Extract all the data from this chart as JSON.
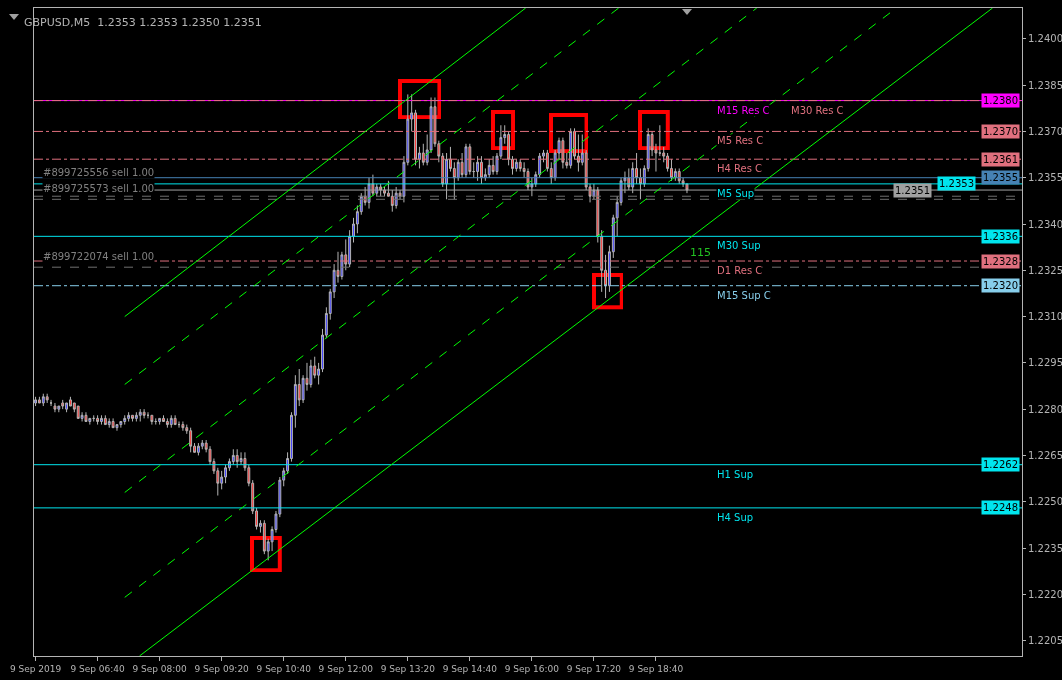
{
  "chart_data": {
    "type": "candlestick",
    "title": "GBPUSD,M5  1.2353 1.2353 1.2350 1.2351",
    "x": [
      "2019-09-09T05:20",
      "2019-09-09T05:25",
      "2019-09-09T05:30",
      "2019-09-09T05:35",
      "2019-09-09T05:40",
      "2019-09-09T05:45",
      "2019-09-09T05:50",
      "2019-09-09T05:55",
      "2019-09-09T06:00",
      "2019-09-09T06:05",
      "2019-09-09T06:10",
      "2019-09-09T06:15",
      "2019-09-09T06:20",
      "2019-09-09T06:25",
      "2019-09-09T06:30",
      "2019-09-09T06:35",
      "2019-09-09T06:40",
      "2019-09-09T06:45",
      "2019-09-09T06:50",
      "2019-09-09T06:55",
      "2019-09-09T07:00",
      "2019-09-09T07:05",
      "2019-09-09T07:10",
      "2019-09-09T07:15",
      "2019-09-09T07:20",
      "2019-09-09T07:25",
      "2019-09-09T07:30",
      "2019-09-09T07:35",
      "2019-09-09T07:40",
      "2019-09-09T07:45",
      "2019-09-09T07:50",
      "2019-09-09T07:55",
      "2019-09-09T08:00",
      "2019-09-09T08:05",
      "2019-09-09T08:10",
      "2019-09-09T08:15",
      "2019-09-09T08:20",
      "2019-09-09T08:25",
      "2019-09-09T08:30",
      "2019-09-09T08:35",
      "2019-09-09T08:40",
      "2019-09-09T08:45",
      "2019-09-09T08:50",
      "2019-09-09T08:55",
      "2019-09-09T09:00",
      "2019-09-09T09:05",
      "2019-09-09T09:10",
      "2019-09-09T09:15",
      "2019-09-09T09:20",
      "2019-09-09T09:25",
      "2019-09-09T09:30",
      "2019-09-09T09:35",
      "2019-09-09T09:40",
      "2019-09-09T09:45",
      "2019-09-09T09:50",
      "2019-09-09T09:55",
      "2019-09-09T10:00",
      "2019-09-09T10:05",
      "2019-09-09T10:10",
      "2019-09-09T10:15",
      "2019-09-09T10:20",
      "2019-09-09T10:25",
      "2019-09-09T10:30",
      "2019-09-09T10:35",
      "2019-09-09T10:40",
      "2019-09-09T10:45",
      "2019-09-09T10:50",
      "2019-09-09T10:55",
      "2019-09-09T11:00",
      "2019-09-09T11:05",
      "2019-09-09T11:10",
      "2019-09-09T11:15",
      "2019-09-09T11:20",
      "2019-09-09T11:25",
      "2019-09-09T11:30",
      "2019-09-09T11:35",
      "2019-09-09T11:40",
      "2019-09-09T11:45",
      "2019-09-09T11:50",
      "2019-09-09T11:55",
      "2019-09-09T12:00",
      "2019-09-09T12:05",
      "2019-09-09T12:10",
      "2019-09-09T12:15",
      "2019-09-09T12:20",
      "2019-09-09T12:25",
      "2019-09-09T12:30",
      "2019-09-09T12:35",
      "2019-09-09T12:40",
      "2019-09-09T12:45",
      "2019-09-09T12:50",
      "2019-09-09T12:55",
      "2019-09-09T13:00",
      "2019-09-09T13:05",
      "2019-09-09T13:10",
      "2019-09-09T13:15",
      "2019-09-09T13:20",
      "2019-09-09T13:25",
      "2019-09-09T13:30",
      "2019-09-09T13:35",
      "2019-09-09T13:40",
      "2019-09-09T13:45",
      "2019-09-09T13:50",
      "2019-09-09T13:55",
      "2019-09-09T14:00",
      "2019-09-09T14:05",
      "2019-09-09T14:10",
      "2019-09-09T14:15",
      "2019-09-09T14:20",
      "2019-09-09T14:25",
      "2019-09-09T14:30",
      "2019-09-09T14:35",
      "2019-09-09T14:40",
      "2019-09-09T14:45",
      "2019-09-09T14:50",
      "2019-09-09T14:55",
      "2019-09-09T15:00",
      "2019-09-09T15:05",
      "2019-09-09T15:10",
      "2019-09-09T15:15",
      "2019-09-09T15:20",
      "2019-09-09T15:25",
      "2019-09-09T15:30",
      "2019-09-09T15:35",
      "2019-09-09T15:40",
      "2019-09-09T15:45",
      "2019-09-09T15:50",
      "2019-09-09T15:55",
      "2019-09-09T16:00",
      "2019-09-09T16:05",
      "2019-09-09T16:10",
      "2019-09-09T16:15",
      "2019-09-09T16:20",
      "2019-09-09T16:25",
      "2019-09-09T16:30",
      "2019-09-09T16:35",
      "2019-09-09T16:40",
      "2019-09-09T16:45",
      "2019-09-09T16:50",
      "2019-09-09T16:55",
      "2019-09-09T17:00",
      "2019-09-09T17:05",
      "2019-09-09T17:10",
      "2019-09-09T17:15",
      "2019-09-09T17:20",
      "2019-09-09T17:25",
      "2019-09-09T17:30",
      "2019-09-09T17:35",
      "2019-09-09T17:40",
      "2019-09-09T17:45",
      "2019-09-09T17:50",
      "2019-09-09T17:55",
      "2019-09-09T18:00",
      "2019-09-09T18:05",
      "2019-09-09T18:10",
      "2019-09-09T18:15",
      "2019-09-09T18:20",
      "2019-09-09T18:25",
      "2019-09-09T18:30",
      "2019-09-09T18:35",
      "2019-09-09T18:40",
      "2019-09-09T18:45",
      "2019-09-09T18:50",
      "2019-09-09T18:55",
      "2019-09-09T19:00",
      "2019-09-09T19:05",
      "2019-09-09T19:10",
      "2019-09-09T19:15",
      "2019-09-09T19:20"
    ],
    "ohlc": [
      [
        1.2282,
        1.2284,
        1.2281,
        1.2283
      ],
      [
        1.2283,
        1.2284,
        1.2282,
        1.2282
      ],
      [
        1.2282,
        1.2285,
        1.2281,
        1.2284
      ],
      [
        1.2284,
        1.2285,
        1.2282,
        1.2283
      ],
      [
        1.2282,
        1.2283,
        1.2281,
        1.2282
      ],
      [
        1.2281,
        1.2282,
        1.2279,
        1.228
      ],
      [
        1.228,
        1.2281,
        1.2279,
        1.2281
      ],
      [
        1.2282,
        1.2283,
        1.228,
        1.2281
      ],
      [
        1.228,
        1.2282,
        1.2279,
        1.2282
      ],
      [
        1.2283,
        1.2284,
        1.2281,
        1.2281
      ],
      [
        1.2282,
        1.2282,
        1.2279,
        1.228
      ],
      [
        1.2281,
        1.2281,
        1.2277,
        1.2277
      ],
      [
        1.2277,
        1.2279,
        1.2276,
        1.2278
      ],
      [
        1.2278,
        1.2279,
        1.2276,
        1.2276
      ],
      [
        1.2276,
        1.2277,
        1.2275,
        1.2277
      ],
      [
        1.2277,
        1.2278,
        1.2276,
        1.2277
      ],
      [
        1.2277,
        1.2278,
        1.2275,
        1.2276
      ],
      [
        1.2276,
        1.2278,
        1.2275,
        1.2277
      ],
      [
        1.2277,
        1.2278,
        1.2275,
        1.2275
      ],
      [
        1.2275,
        1.2277,
        1.2274,
        1.2276
      ],
      [
        1.2276,
        1.2277,
        1.2274,
        1.2274
      ],
      [
        1.2274,
        1.2275,
        1.2273,
        1.2275
      ],
      [
        1.2275,
        1.2276,
        1.2274,
        1.2276
      ],
      [
        1.2276,
        1.2278,
        1.2275,
        1.2277
      ],
      [
        1.2277,
        1.2279,
        1.2276,
        1.2278
      ],
      [
        1.2278,
        1.2278,
        1.2276,
        1.2277
      ],
      [
        1.2277,
        1.2279,
        1.2276,
        1.2278
      ],
      [
        1.2278,
        1.228,
        1.2276,
        1.2279
      ],
      [
        1.2279,
        1.228,
        1.2277,
        1.2278
      ],
      [
        1.2278,
        1.2279,
        1.2277,
        1.2278
      ],
      [
        1.2278,
        1.2278,
        1.2275,
        1.2276
      ],
      [
        1.2276,
        1.2277,
        1.2275,
        1.2276
      ],
      [
        1.2276,
        1.2277,
        1.2275,
        1.2277
      ],
      [
        1.2277,
        1.2278,
        1.2276,
        1.2276
      ],
      [
        1.2276,
        1.2277,
        1.2274,
        1.2275
      ],
      [
        1.2275,
        1.2278,
        1.2274,
        1.2277
      ],
      [
        1.2277,
        1.2278,
        1.2275,
        1.2275
      ],
      [
        1.2275,
        1.2276,
        1.2274,
        1.2275
      ],
      [
        1.2275,
        1.2276,
        1.2273,
        1.2274
      ],
      [
        1.2274,
        1.2275,
        1.2272,
        1.2273
      ],
      [
        1.2273,
        1.2274,
        1.2266,
        1.2268
      ],
      [
        1.2268,
        1.2269,
        1.2266,
        1.2266
      ],
      [
        1.2266,
        1.2269,
        1.2265,
        1.2268
      ],
      [
        1.2268,
        1.227,
        1.2267,
        1.2269
      ],
      [
        1.2269,
        1.227,
        1.2266,
        1.2267
      ],
      [
        1.2267,
        1.2268,
        1.2262,
        1.2263
      ],
      [
        1.2263,
        1.2264,
        1.2259,
        1.226
      ],
      [
        1.226,
        1.2261,
        1.2252,
        1.2256
      ],
      [
        1.2256,
        1.226,
        1.2254,
        1.2258
      ],
      [
        1.2258,
        1.2262,
        1.2256,
        1.2261
      ],
      [
        1.2261,
        1.2264,
        1.226,
        1.2263
      ],
      [
        1.2263,
        1.2267,
        1.2262,
        1.2265
      ],
      [
        1.2265,
        1.2267,
        1.2261,
        1.2263
      ],
      [
        1.2263,
        1.2266,
        1.2262,
        1.2264
      ],
      [
        1.2264,
        1.2266,
        1.226,
        1.2261
      ],
      [
        1.2261,
        1.2262,
        1.2255,
        1.2256
      ],
      [
        1.2256,
        1.2257,
        1.2246,
        1.2247
      ],
      [
        1.2247,
        1.2248,
        1.2241,
        1.2242
      ],
      [
        1.2242,
        1.2244,
        1.224,
        1.2243
      ],
      [
        1.2243,
        1.2244,
        1.2233,
        1.2234
      ],
      [
        1.2234,
        1.2238,
        1.2231,
        1.2237
      ],
      [
        1.2237,
        1.2242,
        1.2234,
        1.2241
      ],
      [
        1.2241,
        1.2247,
        1.224,
        1.2246
      ],
      [
        1.2246,
        1.2258,
        1.2245,
        1.2257
      ],
      [
        1.2257,
        1.2261,
        1.2255,
        1.226
      ],
      [
        1.226,
        1.2266,
        1.2259,
        1.2264
      ],
      [
        1.2264,
        1.2279,
        1.2263,
        1.2278
      ],
      [
        1.2278,
        1.2291,
        1.2274,
        1.2288
      ],
      [
        1.2288,
        1.2293,
        1.2281,
        1.2283
      ],
      [
        1.2283,
        1.2291,
        1.2282,
        1.229
      ],
      [
        1.229,
        1.2295,
        1.2286,
        1.2288
      ],
      [
        1.2288,
        1.2296,
        1.2287,
        1.2294
      ],
      [
        1.2294,
        1.2297,
        1.229,
        1.2291
      ],
      [
        1.2291,
        1.2295,
        1.2288,
        1.2293
      ],
      [
        1.2293,
        1.2306,
        1.2292,
        1.2304
      ],
      [
        1.2304,
        1.2313,
        1.2303,
        1.2311
      ],
      [
        1.2311,
        1.2319,
        1.2309,
        1.2318
      ],
      [
        1.2318,
        1.2327,
        1.2316,
        1.2325
      ],
      [
        1.2325,
        1.2331,
        1.2321,
        1.2323
      ],
      [
        1.2323,
        1.2331,
        1.2322,
        1.233
      ],
      [
        1.233,
        1.2335,
        1.2325,
        1.2327
      ],
      [
        1.2327,
        1.2338,
        1.2326,
        1.2336
      ],
      [
        1.2336,
        1.2342,
        1.2334,
        1.234
      ],
      [
        1.234,
        1.2346,
        1.2337,
        1.2344
      ],
      [
        1.2344,
        1.235,
        1.2343,
        1.2349
      ],
      [
        1.2349,
        1.2352,
        1.2346,
        1.2347
      ],
      [
        1.2347,
        1.2355,
        1.2345,
        1.2353
      ],
      [
        1.2353,
        1.2356,
        1.2349,
        1.235
      ],
      [
        1.235,
        1.2353,
        1.2349,
        1.2352
      ],
      [
        1.2352,
        1.2353,
        1.2349,
        1.2351
      ],
      [
        1.2351,
        1.2352,
        1.2349,
        1.235
      ],
      [
        1.235,
        1.2354,
        1.2349,
        1.2349
      ],
      [
        1.2349,
        1.2351,
        1.2344,
        1.2346
      ],
      [
        1.2346,
        1.2352,
        1.2345,
        1.235
      ],
      [
        1.235,
        1.2351,
        1.2348,
        1.2349
      ],
      [
        1.2349,
        1.2362,
        1.2347,
        1.236
      ],
      [
        1.236,
        1.2382,
        1.2359,
        1.2374
      ],
      [
        1.2374,
        1.2382,
        1.237,
        1.2376
      ],
      [
        1.2376,
        1.2377,
        1.2359,
        1.2361
      ],
      [
        1.2361,
        1.2365,
        1.2358,
        1.2363
      ],
      [
        1.2363,
        1.2366,
        1.2359,
        1.236
      ],
      [
        1.236,
        1.2369,
        1.2359,
        1.2364
      ],
      [
        1.2364,
        1.2381,
        1.2363,
        1.2378
      ],
      [
        1.2378,
        1.2381,
        1.2365,
        1.2366
      ],
      [
        1.2366,
        1.2367,
        1.236,
        1.2362
      ],
      [
        1.2362,
        1.2363,
        1.2352,
        1.2353
      ],
      [
        1.2353,
        1.2363,
        1.2348,
        1.2361
      ],
      [
        1.2361,
        1.2365,
        1.2357,
        1.2358
      ],
      [
        1.2358,
        1.236,
        1.2348,
        1.2355
      ],
      [
        1.2355,
        1.2361,
        1.2354,
        1.236
      ],
      [
        1.236,
        1.2363,
        1.2355,
        1.2356
      ],
      [
        1.2356,
        1.2366,
        1.2355,
        1.2365
      ],
      [
        1.2365,
        1.2366,
        1.2356,
        1.2357
      ],
      [
        1.2357,
        1.236,
        1.2355,
        1.2357
      ],
      [
        1.2357,
        1.2362,
        1.2354,
        1.236
      ],
      [
        1.236,
        1.2362,
        1.2353,
        1.2355
      ],
      [
        1.2355,
        1.2358,
        1.2354,
        1.2356
      ],
      [
        1.2356,
        1.2361,
        1.2355,
        1.2359
      ],
      [
        1.2359,
        1.2362,
        1.2356,
        1.2357
      ],
      [
        1.2357,
        1.2363,
        1.2356,
        1.2362
      ],
      [
        1.2362,
        1.2372,
        1.2361,
        1.2368
      ],
      [
        1.2368,
        1.2372,
        1.2366,
        1.2369
      ],
      [
        1.2369,
        1.237,
        1.2359,
        1.2361
      ],
      [
        1.2361,
        1.2362,
        1.2356,
        1.2358
      ],
      [
        1.2358,
        1.2361,
        1.2357,
        1.236
      ],
      [
        1.236,
        1.2361,
        1.2357,
        1.2358
      ],
      [
        1.2358,
        1.236,
        1.2355,
        1.2357
      ],
      [
        1.2357,
        1.2358,
        1.2351,
        1.2352
      ],
      [
        1.2352,
        1.2355,
        1.2349,
        1.2353
      ],
      [
        1.2353,
        1.2357,
        1.2352,
        1.2356
      ],
      [
        1.2356,
        1.2363,
        1.2355,
        1.2362
      ],
      [
        1.2362,
        1.2364,
        1.236,
        1.2363
      ],
      [
        1.2363,
        1.2364,
        1.2357,
        1.2358
      ],
      [
        1.2358,
        1.236,
        1.2353,
        1.2355
      ],
      [
        1.2355,
        1.2364,
        1.2354,
        1.2363
      ],
      [
        1.2363,
        1.2368,
        1.2361,
        1.2367
      ],
      [
        1.2367,
        1.2368,
        1.2358,
        1.236
      ],
      [
        1.236,
        1.2363,
        1.2358,
        1.2359
      ],
      [
        1.2359,
        1.2371,
        1.2358,
        1.237
      ],
      [
        1.237,
        1.2371,
        1.2361,
        1.2362
      ],
      [
        1.2362,
        1.2369,
        1.2357,
        1.236
      ],
      [
        1.236,
        1.2369,
        1.2359,
        1.2363
      ],
      [
        1.2363,
        1.2364,
        1.2351,
        1.2352
      ],
      [
        1.2352,
        1.2353,
        1.2347,
        1.2349
      ],
      [
        1.2349,
        1.2353,
        1.2348,
        1.2351
      ],
      [
        1.2351,
        1.2352,
        1.2334,
        1.2336
      ],
      [
        1.2336,
        1.2338,
        1.2318,
        1.2325
      ],
      [
        1.2325,
        1.233,
        1.2316,
        1.232
      ],
      [
        1.232,
        1.2333,
        1.2318,
        1.2331
      ],
      [
        1.2331,
        1.2343,
        1.2329,
        1.2342
      ],
      [
        1.2342,
        1.2349,
        1.2336,
        1.2347
      ],
      [
        1.2347,
        1.2355,
        1.2346,
        1.2354
      ],
      [
        1.2354,
        1.2357,
        1.235,
        1.2355
      ],
      [
        1.2355,
        1.2358,
        1.2351,
        1.2352
      ],
      [
        1.2352,
        1.236,
        1.235,
        1.2358
      ],
      [
        1.2358,
        1.2363,
        1.2353,
        1.2355
      ],
      [
        1.2355,
        1.2358,
        1.2348,
        1.2353
      ],
      [
        1.2353,
        1.2359,
        1.2352,
        1.2358
      ],
      [
        1.2358,
        1.2371,
        1.2357,
        1.2369
      ],
      [
        1.2369,
        1.237,
        1.2362,
        1.2364
      ],
      [
        1.2364,
        1.2366,
        1.2357,
        1.2363
      ],
      [
        1.2363,
        1.2372,
        1.2362,
        1.2363
      ],
      [
        1.2363,
        1.2365,
        1.236,
        1.2362
      ],
      [
        1.2362,
        1.2363,
        1.2357,
        1.2358
      ],
      [
        1.2358,
        1.2361,
        1.2354,
        1.2355
      ],
      [
        1.2355,
        1.2358,
        1.2354,
        1.2357
      ],
      [
        1.2357,
        1.2358,
        1.2353,
        1.2354
      ],
      [
        1.2354,
        1.2355,
        1.2352,
        1.2353
      ],
      [
        1.2353,
        1.2353,
        1.235,
        1.2351
      ]
    ],
    "series": [
      {
        "type": "line",
        "color": "#00ff00",
        "line_style": "solid",
        "x": [
          "2019-09-09T07:15",
          "2019-09-09T15:52"
        ],
        "values": [
          1.231,
          1.241
        ]
      },
      {
        "type": "line",
        "color": "#00ff00",
        "line_style": "dashed",
        "x": [
          "2019-09-09T07:15",
          "2019-09-09T17:52"
        ],
        "values": [
          1.2288,
          1.241
        ]
      },
      {
        "type": "line",
        "color": "#00ff00",
        "line_style": "dashed",
        "x": [
          "2019-09-09T07:15",
          "2019-09-09T20:50"
        ],
        "values": [
          1.2253,
          1.241
        ]
      },
      {
        "type": "line",
        "color": "#00ff00",
        "line_style": "dashed",
        "x": [
          "2019-09-09T07:15",
          "2019-09-09T23:50"
        ],
        "values": [
          1.2219,
          1.241
        ]
      },
      {
        "type": "line",
        "color": "#00ff00",
        "line_style": "solid",
        "x": [
          "2019-09-09T07:34",
          "2019-09-10T01:54"
        ],
        "values": [
          1.22,
          1.241
        ]
      }
    ],
    "ref_lines": [
      {
        "axis": "y",
        "value": 1.238,
        "label": "M15 Res C",
        "color": "#ff00ff",
        "line_style": "solid"
      },
      {
        "axis": "y",
        "value": 1.238,
        "label": "M30 Res C",
        "color": "#e0707e",
        "line_style": "dashdot"
      },
      {
        "axis": "y",
        "value": 1.237,
        "label": "M5 Res C",
        "color": "#e0707e",
        "line_style": "dashdot"
      },
      {
        "axis": "y",
        "value": 1.2361,
        "label": "H4 Res C",
        "color": "#e0707e",
        "line_style": "dashdot"
      },
      {
        "axis": "y",
        "value": 1.2355,
        "label": null,
        "color": "#4682b4",
        "line_style": "solid"
      },
      {
        "axis": "y",
        "value": 1.2353,
        "label": "M5 Sup",
        "color": "#00e5ee",
        "line_style": "solid"
      },
      {
        "axis": "y",
        "value": 1.2351,
        "label": null,
        "color": "#a0a0a0",
        "line_style": "solid"
      },
      {
        "axis": "y",
        "value": 1.2348,
        "label": "#899725573 sell 1.00",
        "color": "#707070",
        "line_style": "dashed"
      },
      {
        "axis": "y",
        "value": 1.2349,
        "label": "#899725556 sell 1.00",
        "color": "#707070",
        "line_style": "dashed"
      },
      {
        "axis": "y",
        "value": 1.2336,
        "label": "M30 Sup",
        "color": "#00e5ee",
        "line_style": "solid"
      },
      {
        "axis": "y",
        "value": 1.2328,
        "label": "D1 Res C",
        "color": "#e0707e",
        "line_style": "dashdot"
      },
      {
        "axis": "y",
        "value": 1.2326,
        "label": "#899722074 sell 1.00",
        "color": "#707070",
        "line_style": "dashed"
      },
      {
        "axis": "y",
        "value": 1.232,
        "label": "M15 Sup C",
        "color": "#87ceeb",
        "line_style": "dashdot"
      },
      {
        "axis": "y",
        "value": 1.2262,
        "label": "H1 Sup",
        "color": "#00e5ee",
        "line_style": "solid"
      },
      {
        "axis": "y",
        "value": 1.2248,
        "label": "H4 Sup",
        "color": "#00e5ee",
        "line_style": "solid"
      }
    ],
    "annotations": [
      "115",
      {
        "text": "1.2380",
        "y": 1.238
      },
      {
        "text": "1.2370",
        "y": 1.237
      },
      {
        "text": "1.2361",
        "y": 1.2361
      },
      {
        "text": "1.2355",
        "y": 1.2355
      },
      {
        "text": "1.2353",
        "y": 1.2353
      },
      {
        "text": "1.2351",
        "y": 1.2351
      },
      {
        "text": "1.2336",
        "y": 1.2336
      },
      {
        "text": "1.2328",
        "y": 1.2328
      },
      {
        "text": "1.2320",
        "y": 1.232
      },
      {
        "text": "1.2262",
        "y": 1.2262
      },
      {
        "text": "1.2248",
        "y": 1.2248
      }
    ],
    "xlim": [
      "2019-09-09T05:18",
      "2019-09-10T02:32"
    ],
    "xticks": [
      {
        "value": "2019-09-09T05:20",
        "label": "9 Sep 2019"
      },
      {
        "value": "2019-09-09T06:40",
        "label": "9 Sep 06:40"
      },
      {
        "value": "2019-09-09T08:00",
        "label": "9 Sep 08:00"
      },
      {
        "value": "2019-09-09T09:20",
        "label": "9 Sep 09:20"
      },
      {
        "value": "2019-09-09T10:40",
        "label": "9 Sep 10:40"
      },
      {
        "value": "2019-09-09T12:00",
        "label": "9 Sep 12:00"
      },
      {
        "value": "2019-09-09T13:20",
        "label": "9 Sep 13:20"
      },
      {
        "value": "2019-09-09T14:40",
        "label": "9 Sep 14:40"
      },
      {
        "value": "2019-09-09T16:00",
        "label": "9 Sep 16:00"
      },
      {
        "value": "2019-09-09T17:20",
        "label": "9 Sep 17:20"
      },
      {
        "value": "2019-09-09T18:40",
        "label": "9 Sep 18:40"
      }
    ],
    "ylim": [
      1.22,
      1.241
    ],
    "yticks": [
      {
        "value": 1.2205,
        "label": "1.2205"
      },
      {
        "value": 1.222,
        "label": "1.2220"
      },
      {
        "value": 1.2235,
        "label": "1.2235"
      },
      {
        "value": 1.225,
        "label": "1.2250"
      },
      {
        "value": 1.2265,
        "label": "1.2265"
      },
      {
        "value": 1.228,
        "label": "1.2280"
      },
      {
        "value": 1.2295,
        "label": "1.2295"
      },
      {
        "value": 1.231,
        "label": "1.2310"
      },
      {
        "value": 1.2325,
        "label": "1.2325"
      },
      {
        "value": 1.234,
        "label": "1.2340"
      },
      {
        "value": 1.2355,
        "label": "1.2355"
      },
      {
        "value": 1.237,
        "label": "1.2370"
      },
      {
        "value": 1.2385,
        "label": "1.2385"
      },
      {
        "value": 1.24,
        "label": "1.2400"
      }
    ]
  }
}
